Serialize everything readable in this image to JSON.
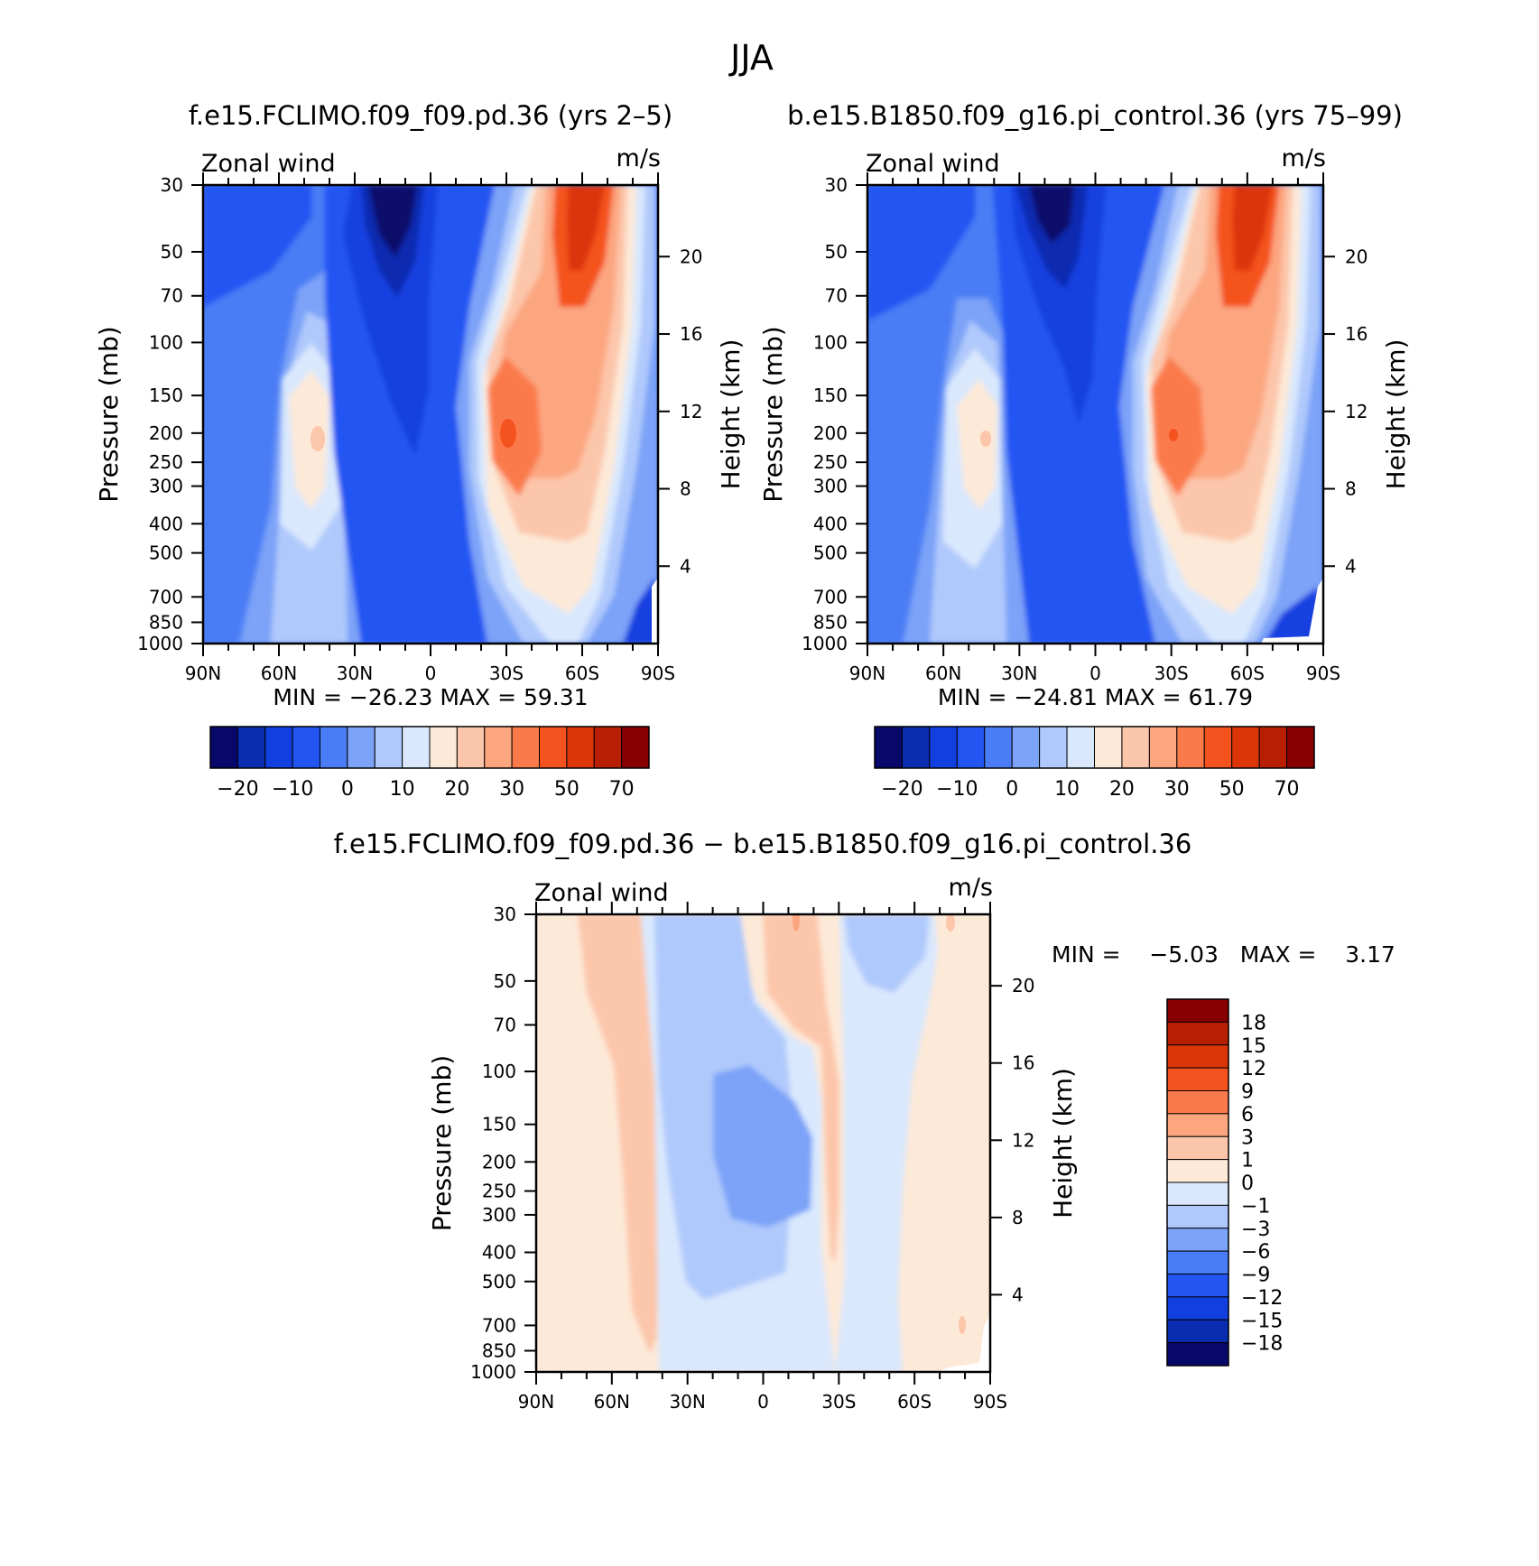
{
  "figure": {
    "season": "JJA"
  },
  "colors": {
    "wind_palette": [
      "#08086b",
      "#0a2cb0",
      "#1240e0",
      "#2255f2",
      "#4a7cf5",
      "#7ba3f8",
      "#b0c9fc",
      "#d9e8fd",
      "#fde9d8",
      "#fcc6aa",
      "#fca680",
      "#fb7a4c",
      "#f4521e",
      "#dc3608",
      "#b81f02",
      "#870000"
    ],
    "diff_palette": [
      "#08086b",
      "#0a2cb0",
      "#1240e0",
      "#2255f2",
      "#4a7cf5",
      "#7ba3f8",
      "#b0c9fc",
      "#d9e8fd",
      "#fde9d8",
      "#fcc6aa",
      "#fca680",
      "#fb7a4c",
      "#f4521e",
      "#dc3608",
      "#b81f02",
      "#870000"
    ]
  },
  "chart_data": [
    {
      "id": "top-left",
      "type": "heatmap",
      "title": "f.e15.FCLIMO.f09_f09.pd.36 (yrs 2–5)",
      "left_string": "Zonal wind",
      "right_string": "m/s",
      "ylabel": "Pressure (mb)",
      "ylabel_right": "Height (km)",
      "x_ticks": [
        "90N",
        "60N",
        "30N",
        "0",
        "30S",
        "60S",
        "90S"
      ],
      "x_values": [
        90,
        60,
        30,
        0,
        -30,
        -60,
        -90
      ],
      "y_ticks": [
        "30",
        "50",
        "70",
        "100",
        "150",
        "200",
        "250",
        "300",
        "400",
        "500",
        "700",
        "850",
        "1000"
      ],
      "y_values": [
        30,
        50,
        70,
        100,
        150,
        200,
        250,
        300,
        400,
        500,
        700,
        850,
        1000
      ],
      "height_ticks": [
        "20",
        "16",
        "12",
        "8",
        "4"
      ],
      "height_values": [
        20,
        16,
        12,
        8,
        4
      ],
      "ylim": [
        1000,
        30
      ],
      "min_max": "MIN =  −26.23   MAX =   59.31",
      "min": -26.23,
      "max": 59.31,
      "levels": [
        -25,
        -20,
        -15,
        -10,
        -5,
        0,
        5,
        10,
        15,
        20,
        25,
        30,
        40,
        50,
        60,
        70
      ],
      "colorbar_labels": [
        "−20",
        "−10",
        "0",
        "10",
        "20",
        "30",
        "50",
        "70"
      ],
      "features": [
        {
          "name": "NH subtropical jet",
          "lat": -30,
          "p": 200,
          "value": 45
        },
        {
          "name": "SH polar night jet",
          "lat": -60,
          "p": 30,
          "value": 59
        },
        {
          "name": "NH high-latitude westerlies",
          "lat": 45,
          "p": 200,
          "value": 17
        },
        {
          "name": "Tropical easterlies",
          "lat": 20,
          "p": 30,
          "value": -26
        }
      ]
    },
    {
      "id": "top-right",
      "type": "heatmap",
      "title": "b.e15.B1850.f09_g16.pi_control.36 (yrs 75–99)",
      "left_string": "Zonal wind",
      "right_string": "m/s",
      "ylabel": "Pressure (mb)",
      "ylabel_right": "Height (km)",
      "x_ticks": [
        "90N",
        "60N",
        "30N",
        "0",
        "30S",
        "60S",
        "90S"
      ],
      "x_values": [
        90,
        60,
        30,
        0,
        -30,
        -60,
        -90
      ],
      "y_ticks": [
        "30",
        "50",
        "70",
        "100",
        "150",
        "200",
        "250",
        "300",
        "400",
        "500",
        "700",
        "850",
        "1000"
      ],
      "y_values": [
        30,
        50,
        70,
        100,
        150,
        200,
        250,
        300,
        400,
        500,
        700,
        850,
        1000
      ],
      "height_ticks": [
        "20",
        "16",
        "12",
        "8",
        "4"
      ],
      "height_values": [
        20,
        16,
        12,
        8,
        4
      ],
      "ylim": [
        1000,
        30
      ],
      "min_max": "MIN =  −24.81   MAX =   61.79",
      "min": -24.81,
      "max": 61.79,
      "levels": [
        -25,
        -20,
        -15,
        -10,
        -5,
        0,
        5,
        10,
        15,
        20,
        25,
        30,
        40,
        50,
        60,
        70
      ],
      "colorbar_labels": [
        "−20",
        "−10",
        "0",
        "10",
        "20",
        "30",
        "50",
        "70"
      ],
      "features": [
        {
          "name": "NH subtropical jet",
          "lat": -30,
          "p": 200,
          "value": 43
        },
        {
          "name": "SH polar night jet",
          "lat": -60,
          "p": 30,
          "value": 61
        },
        {
          "name": "NH high-latitude westerlies",
          "lat": 45,
          "p": 200,
          "value": 16
        },
        {
          "name": "Tropical easterlies",
          "lat": 20,
          "p": 30,
          "value": -25
        }
      ]
    },
    {
      "id": "bottom",
      "type": "heatmap",
      "title": "f.e15.FCLIMO.f09_f09.pd.36 − b.e15.B1850.f09_g16.pi_control.36",
      "left_string": "Zonal wind",
      "right_string": "m/s",
      "ylabel": "Pressure (mb)",
      "ylabel_right": "Height (km)",
      "x_ticks": [
        "90N",
        "60N",
        "30N",
        "0",
        "30S",
        "60S",
        "90S"
      ],
      "x_values": [
        90,
        60,
        30,
        0,
        -30,
        -60,
        -90
      ],
      "y_ticks": [
        "30",
        "50",
        "70",
        "100",
        "150",
        "200",
        "250",
        "300",
        "400",
        "500",
        "700",
        "850",
        "1000"
      ],
      "y_values": [
        30,
        50,
        70,
        100,
        150,
        200,
        250,
        300,
        400,
        500,
        700,
        850,
        1000
      ],
      "height_ticks": [
        "20",
        "16",
        "12",
        "8",
        "4"
      ],
      "height_values": [
        20,
        16,
        12,
        8,
        4
      ],
      "ylim": [
        1000,
        30
      ],
      "min_max": "MIN =    −5.03   MAX =    3.17",
      "min": -5.03,
      "max": 3.17,
      "levels": [
        -18,
        -15,
        -12,
        -9,
        -6,
        -3,
        -1,
        0,
        1,
        3,
        6,
        9,
        12,
        15,
        18
      ],
      "colorbar_labels": [
        "18",
        "15",
        "12",
        "9",
        "6",
        "3",
        "1",
        "0",
        "−1",
        "−3",
        "−6",
        "−9",
        "−12",
        "−15",
        "−18"
      ],
      "features": [
        {
          "name": "Tropical negative anomaly",
          "lat": 0,
          "p": 200,
          "value": -5
        },
        {
          "name": "Midlatitude positive anomaly",
          "lat": 60,
          "p": 150,
          "value": 2
        },
        {
          "name": "Subtropical positive anomaly",
          "lat": -30,
          "p": 70,
          "value": 3
        }
      ]
    }
  ]
}
